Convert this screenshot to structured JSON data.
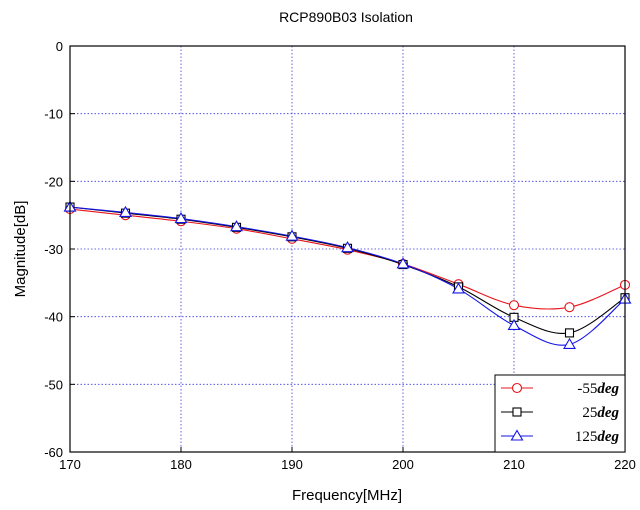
{
  "chart_data": {
    "type": "line",
    "title": "RCP890B03 Isolation",
    "xlabel": "Frequency[MHz]",
    "ylabel": "Magnitude[dB]",
    "xlim": [
      170,
      220
    ],
    "ylim": [
      -60,
      0
    ],
    "x_ticks": [
      170,
      180,
      190,
      200,
      210,
      220
    ],
    "y_ticks": [
      0,
      -10,
      -20,
      -30,
      -40,
      -50,
      -60
    ],
    "grid": true,
    "grid_style": "dotted",
    "legend_position": "bottom-right",
    "x": [
      170,
      175,
      180,
      185,
      190,
      195,
      200,
      205,
      210,
      215,
      220
    ],
    "series": [
      {
        "name_number": "-55",
        "name_unit": "deg",
        "color": "#e8141c",
        "marker": "circle",
        "values": [
          -24.1,
          -25.0,
          -25.9,
          -27.0,
          -28.5,
          -30.1,
          -32.2,
          -35.2,
          -38.3,
          -38.6,
          -35.3
        ]
      },
      {
        "name_number": "25",
        "name_unit": "deg",
        "color": "#000000",
        "marker": "square",
        "values": [
          -23.8,
          -24.7,
          -25.6,
          -26.8,
          -28.2,
          -29.9,
          -32.3,
          -35.6,
          -40.1,
          -42.4,
          -37.2
        ]
      },
      {
        "name_number": "125",
        "name_unit": "deg",
        "color": "#1414e6",
        "marker": "triangle",
        "values": [
          -23.8,
          -24.6,
          -25.5,
          -26.7,
          -28.1,
          -29.8,
          -32.2,
          -35.9,
          -41.3,
          -44.1,
          -37.4
        ]
      }
    ]
  }
}
